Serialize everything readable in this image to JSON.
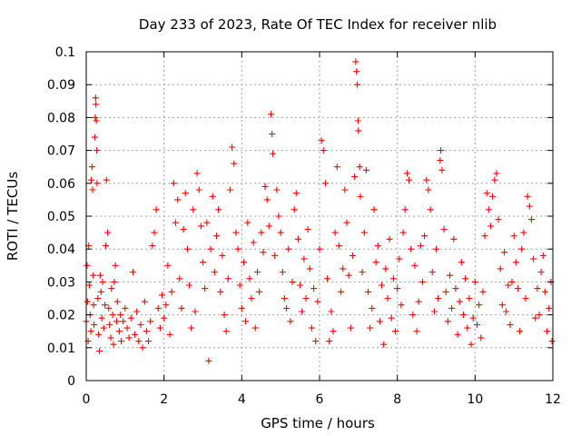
{
  "chart_data": {
    "type": "scatter",
    "title": "Day 233 of 2023, Rate Of TEC Index for receiver nlib",
    "xlabel": "GPS time / hours",
    "ylabel": "ROTI / TECUs",
    "xlim": [
      0,
      12
    ],
    "ylim": [
      0,
      0.1
    ],
    "x_ticks": [
      "0",
      "2",
      "4",
      "6",
      "8",
      "10",
      "12"
    ],
    "y_ticks": [
      "0",
      "0.01",
      "0.02",
      "0.03",
      "0.04",
      "0.05",
      "0.06",
      "0.07",
      "0.08",
      "0.09",
      "0.1"
    ],
    "grid": true,
    "marker": "+",
    "color": "#ff0000",
    "series": [
      {
        "points": [
          [
            0.0,
            0.018
          ],
          [
            0.02,
            0.035
          ],
          [
            0.03,
            0.024
          ],
          [
            0.05,
            0.012
          ],
          [
            0.06,
            0.041
          ],
          [
            0.08,
            0.029
          ],
          [
            0.1,
            0.02
          ],
          [
            0.12,
            0.015
          ],
          [
            0.13,
            0.061
          ],
          [
            0.15,
            0.065
          ],
          [
            0.16,
            0.058
          ],
          [
            0.18,
            0.032
          ],
          [
            0.19,
            0.023
          ],
          [
            0.2,
            0.017
          ],
          [
            0.22,
            0.074
          ],
          [
            0.23,
            0.08
          ],
          [
            0.24,
            0.086
          ],
          [
            0.25,
            0.084
          ],
          [
            0.26,
            0.079
          ],
          [
            0.27,
            0.07
          ],
          [
            0.28,
            0.06
          ],
          [
            0.3,
            0.025
          ],
          [
            0.32,
            0.014
          ],
          [
            0.34,
            0.009
          ],
          [
            0.36,
            0.032
          ],
          [
            0.38,
            0.027
          ],
          [
            0.4,
            0.019
          ],
          [
            0.42,
            0.03
          ],
          [
            0.45,
            0.016
          ],
          [
            0.48,
            0.023
          ],
          [
            0.5,
            0.041
          ],
          [
            0.52,
            0.061
          ],
          [
            0.55,
            0.045
          ],
          [
            0.58,
            0.022
          ],
          [
            0.6,
            0.017
          ],
          [
            0.63,
            0.013
          ],
          [
            0.65,
            0.028
          ],
          [
            0.68,
            0.02
          ],
          [
            0.7,
            0.011
          ],
          [
            0.72,
            0.03
          ],
          [
            0.75,
            0.035
          ],
          [
            0.78,
            0.018
          ],
          [
            0.8,
            0.024
          ],
          [
            0.85,
            0.015
          ],
          [
            0.88,
            0.02
          ],
          [
            0.9,
            0.012
          ],
          [
            0.95,
            0.018
          ],
          [
            1.0,
            0.022
          ],
          [
            1.05,
            0.016
          ],
          [
            1.1,
            0.013
          ],
          [
            1.15,
            0.019
          ],
          [
            1.2,
            0.033
          ],
          [
            1.25,
            0.014
          ],
          [
            1.3,
            0.021
          ],
          [
            1.35,
            0.012
          ],
          [
            1.4,
            0.017
          ],
          [
            1.45,
            0.01
          ],
          [
            1.5,
            0.024
          ],
          [
            1.55,
            0.015
          ],
          [
            1.6,
            0.012
          ],
          [
            1.65,
            0.018
          ],
          [
            1.7,
            0.041
          ],
          [
            1.75,
            0.045
          ],
          [
            1.8,
            0.052
          ],
          [
            1.85,
            0.022
          ],
          [
            1.9,
            0.016
          ],
          [
            1.95,
            0.026
          ],
          [
            2.0,
            0.019
          ],
          [
            2.05,
            0.023
          ],
          [
            2.1,
            0.035
          ],
          [
            2.15,
            0.014
          ],
          [
            2.2,
            0.027
          ],
          [
            2.25,
            0.06
          ],
          [
            2.3,
            0.048
          ],
          [
            2.35,
            0.055
          ],
          [
            2.4,
            0.031
          ],
          [
            2.45,
            0.022
          ],
          [
            2.5,
            0.046
          ],
          [
            2.55,
            0.057
          ],
          [
            2.6,
            0.04
          ],
          [
            2.65,
            0.029
          ],
          [
            2.7,
            0.016
          ],
          [
            2.75,
            0.052
          ],
          [
            2.8,
            0.021
          ],
          [
            2.85,
            0.063
          ],
          [
            2.9,
            0.058
          ],
          [
            2.95,
            0.047
          ],
          [
            3.0,
            0.036
          ],
          [
            3.05,
            0.028
          ],
          [
            3.1,
            0.048
          ],
          [
            3.15,
            0.006
          ],
          [
            3.2,
            0.04
          ],
          [
            3.25,
            0.056
          ],
          [
            3.3,
            0.033
          ],
          [
            3.35,
            0.044
          ],
          [
            3.4,
            0.052
          ],
          [
            3.45,
            0.027
          ],
          [
            3.5,
            0.038
          ],
          [
            3.55,
            0.02
          ],
          [
            3.6,
            0.015
          ],
          [
            3.65,
            0.031
          ],
          [
            3.7,
            0.058
          ],
          [
            3.75,
            0.071
          ],
          [
            3.8,
            0.066
          ],
          [
            3.85,
            0.045
          ],
          [
            3.9,
            0.04
          ],
          [
            3.95,
            0.029
          ],
          [
            4.0,
            0.022
          ],
          [
            4.05,
            0.036
          ],
          [
            4.1,
            0.018
          ],
          [
            4.15,
            0.048
          ],
          [
            4.2,
            0.031
          ],
          [
            4.25,
            0.025
          ],
          [
            4.3,
            0.042
          ],
          [
            4.35,
            0.016
          ],
          [
            4.4,
            0.033
          ],
          [
            4.45,
            0.027
          ],
          [
            4.5,
            0.045
          ],
          [
            4.55,
            0.039
          ],
          [
            4.6,
            0.059
          ],
          [
            4.65,
            0.055
          ],
          [
            4.7,
            0.047
          ],
          [
            4.75,
            0.081
          ],
          [
            4.78,
            0.075
          ],
          [
            4.8,
            0.069
          ],
          [
            4.85,
            0.038
          ],
          [
            4.9,
            0.058
          ],
          [
            4.95,
            0.05
          ],
          [
            5.0,
            0.045
          ],
          [
            5.05,
            0.033
          ],
          [
            5.1,
            0.025
          ],
          [
            5.15,
            0.022
          ],
          [
            5.2,
            0.04
          ],
          [
            5.25,
            0.018
          ],
          [
            5.3,
            0.03
          ],
          [
            5.35,
            0.052
          ],
          [
            5.4,
            0.057
          ],
          [
            5.45,
            0.043
          ],
          [
            5.5,
            0.029
          ],
          [
            5.55,
            0.021
          ],
          [
            5.6,
            0.037
          ],
          [
            5.65,
            0.025
          ],
          [
            5.7,
            0.046
          ],
          [
            5.75,
            0.034
          ],
          [
            5.8,
            0.016
          ],
          [
            5.85,
            0.028
          ],
          [
            5.9,
            0.012
          ],
          [
            5.95,
            0.024
          ],
          [
            6.0,
            0.04
          ],
          [
            6.05,
            0.073
          ],
          [
            6.1,
            0.07
          ],
          [
            6.15,
            0.06
          ],
          [
            6.2,
            0.031
          ],
          [
            6.25,
            0.012
          ],
          [
            6.3,
            0.021
          ],
          [
            6.35,
            0.015
          ],
          [
            6.4,
            0.045
          ],
          [
            6.45,
            0.065
          ],
          [
            6.5,
            0.041
          ],
          [
            6.55,
            0.027
          ],
          [
            6.6,
            0.034
          ],
          [
            6.65,
            0.058
          ],
          [
            6.7,
            0.048
          ],
          [
            6.75,
            0.032
          ],
          [
            6.8,
            0.016
          ],
          [
            6.85,
            0.038
          ],
          [
            6.9,
            0.062
          ],
          [
            6.93,
            0.097
          ],
          [
            6.95,
            0.094
          ],
          [
            6.97,
            0.09
          ],
          [
            6.99,
            0.079
          ],
          [
            7.0,
            0.076
          ],
          [
            7.03,
            0.065
          ],
          [
            7.05,
            0.056
          ],
          [
            7.1,
            0.033
          ],
          [
            7.15,
            0.045
          ],
          [
            7.2,
            0.064
          ],
          [
            7.25,
            0.027
          ],
          [
            7.3,
            0.016
          ],
          [
            7.35,
            0.022
          ],
          [
            7.4,
            0.052
          ],
          [
            7.45,
            0.036
          ],
          [
            7.5,
            0.041
          ],
          [
            7.55,
            0.018
          ],
          [
            7.6,
            0.029
          ],
          [
            7.65,
            0.011
          ],
          [
            7.7,
            0.034
          ],
          [
            7.75,
            0.025
          ],
          [
            7.8,
            0.043
          ],
          [
            7.85,
            0.019
          ],
          [
            7.9,
            0.031
          ],
          [
            7.95,
            0.015
          ],
          [
            8.0,
            0.028
          ],
          [
            8.05,
            0.037
          ],
          [
            8.1,
            0.023
          ],
          [
            8.15,
            0.045
          ],
          [
            8.2,
            0.052
          ],
          [
            8.25,
            0.063
          ],
          [
            8.3,
            0.061
          ],
          [
            8.35,
            0.04
          ],
          [
            8.4,
            0.02
          ],
          [
            8.45,
            0.035
          ],
          [
            8.5,
            0.015
          ],
          [
            8.55,
            0.024
          ],
          [
            8.6,
            0.041
          ],
          [
            8.65,
            0.03
          ],
          [
            8.7,
            0.044
          ],
          [
            8.75,
            0.061
          ],
          [
            8.8,
            0.058
          ],
          [
            8.85,
            0.052
          ],
          [
            8.9,
            0.033
          ],
          [
            8.95,
            0.021
          ],
          [
            9.0,
            0.04
          ],
          [
            9.05,
            0.025
          ],
          [
            9.1,
            0.067
          ],
          [
            9.12,
            0.07
          ],
          [
            9.15,
            0.064
          ],
          [
            9.2,
            0.046
          ],
          [
            9.25,
            0.027
          ],
          [
            9.3,
            0.018
          ],
          [
            9.35,
            0.032
          ],
          [
            9.4,
            0.022
          ],
          [
            9.45,
            0.043
          ],
          [
            9.5,
            0.028
          ],
          [
            9.55,
            0.014
          ],
          [
            9.6,
            0.024
          ],
          [
            9.65,
            0.036
          ],
          [
            9.7,
            0.02
          ],
          [
            9.75,
            0.031
          ],
          [
            9.8,
            0.016
          ],
          [
            9.85,
            0.025
          ],
          [
            9.9,
            0.011
          ],
          [
            9.95,
            0.019
          ],
          [
            10.0,
            0.03
          ],
          [
            10.05,
            0.017
          ],
          [
            10.1,
            0.023
          ],
          [
            10.15,
            0.013
          ],
          [
            10.2,
            0.027
          ],
          [
            10.25,
            0.044
          ],
          [
            10.3,
            0.057
          ],
          [
            10.35,
            0.052
          ],
          [
            10.4,
            0.047
          ],
          [
            10.45,
            0.056
          ],
          [
            10.5,
            0.061
          ],
          [
            10.55,
            0.063
          ],
          [
            10.6,
            0.049
          ],
          [
            10.65,
            0.034
          ],
          [
            10.7,
            0.023
          ],
          [
            10.75,
            0.039
          ],
          [
            10.8,
            0.021
          ],
          [
            10.85,
            0.029
          ],
          [
            10.9,
            0.017
          ],
          [
            10.95,
            0.03
          ],
          [
            11.0,
            0.044
          ],
          [
            11.05,
            0.036
          ],
          [
            11.1,
            0.028
          ],
          [
            11.15,
            0.015
          ],
          [
            11.2,
            0.04
          ],
          [
            11.25,
            0.045
          ],
          [
            11.3,
            0.025
          ],
          [
            11.35,
            0.056
          ],
          [
            11.4,
            0.053
          ],
          [
            11.45,
            0.049
          ],
          [
            11.5,
            0.037
          ],
          [
            11.55,
            0.019
          ],
          [
            11.6,
            0.028
          ],
          [
            11.65,
            0.02
          ],
          [
            11.7,
            0.033
          ],
          [
            11.75,
            0.038
          ],
          [
            11.8,
            0.027
          ],
          [
            11.85,
            0.015
          ],
          [
            11.9,
            0.022
          ],
          [
            11.95,
            0.03
          ],
          [
            11.98,
            0.012
          ]
        ]
      }
    ]
  }
}
